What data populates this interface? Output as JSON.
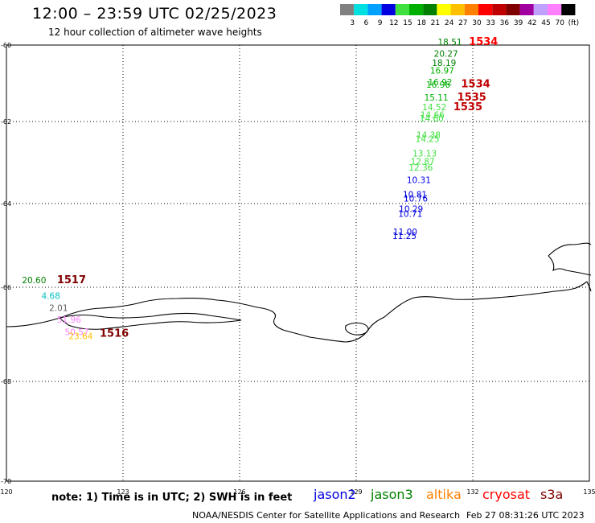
{
  "header": {
    "title": "12:00 – 23:59 UTC 02/25/2023",
    "subtitle": "12 hour collection of altimeter wave heights"
  },
  "colorbar": {
    "unit_label": "(ft)",
    "bins": [
      {
        "label": "3",
        "color": "#808080"
      },
      {
        "label": "6",
        "color": "#00e0e0"
      },
      {
        "label": "9",
        "color": "#00a0ff"
      },
      {
        "label": "12",
        "color": "#0000e0"
      },
      {
        "label": "15",
        "color": "#40e040"
      },
      {
        "label": "18",
        "color": "#00b000"
      },
      {
        "label": "21",
        "color": "#008000"
      },
      {
        "label": "24",
        "color": "#ffff00"
      },
      {
        "label": "27",
        "color": "#ffc000"
      },
      {
        "label": "30",
        "color": "#ff8000"
      },
      {
        "label": "33",
        "color": "#ff0000"
      },
      {
        "label": "36",
        "color": "#c00000"
      },
      {
        "label": "39",
        "color": "#800000"
      },
      {
        "label": "42",
        "color": "#a000a0"
      },
      {
        "label": "45",
        "color": "#c0a0ff"
      },
      {
        "label": "70",
        "color": "#ff80ff"
      },
      {
        "label": "",
        "color": "#000000"
      }
    ]
  },
  "map": {
    "lat_labels": [
      "-60",
      "-62",
      "-64",
      "-66",
      "-68",
      "-70"
    ],
    "lon_labels": [
      "120",
      "123",
      "126",
      "129",
      "132",
      "135"
    ],
    "lat_range": [
      -70,
      -60
    ],
    "lon_range": [
      120,
      135
    ]
  },
  "observations": [
    {
      "text": "18.51",
      "color": "#008000",
      "lon": 131.1,
      "lat": -60.0
    },
    {
      "text": "20.27",
      "color": "#008000",
      "lon": 131.0,
      "lat": -60.3
    },
    {
      "text": "18.19",
      "color": "#008000",
      "lon": 130.95,
      "lat": -60.55
    },
    {
      "text": "16.97",
      "color": "#00b000",
      "lon": 130.9,
      "lat": -60.75
    },
    {
      "text": "16.92",
      "color": "#00b000",
      "lon": 130.85,
      "lat": -61.05
    },
    {
      "text": "16.96",
      "color": "#00b000",
      "lon": 130.8,
      "lat": -61.12
    },
    {
      "text": "15.11",
      "color": "#00b000",
      "lon": 130.75,
      "lat": -61.45
    },
    {
      "text": "14.52",
      "color": "#40e040",
      "lon": 130.7,
      "lat": -61.7
    },
    {
      "text": "14.66",
      "color": "#40e040",
      "lon": 130.65,
      "lat": -61.9
    },
    {
      "text": "14.60",
      "color": "#40e040",
      "lon": 130.63,
      "lat": -62.0
    },
    {
      "text": "14.38",
      "color": "#40e040",
      "lon": 130.55,
      "lat": -62.4
    },
    {
      "text": "14.25",
      "color": "#40e040",
      "lon": 130.52,
      "lat": -62.5
    },
    {
      "text": "13.13",
      "color": "#40e040",
      "lon": 130.45,
      "lat": -62.85
    },
    {
      "text": "12.87",
      "color": "#40e040",
      "lon": 130.4,
      "lat": -63.05
    },
    {
      "text": "12.36",
      "color": "#40e040",
      "lon": 130.35,
      "lat": -63.2
    },
    {
      "text": "10.31",
      "color": "#0000e0",
      "lon": 130.3,
      "lat": -63.5
    },
    {
      "text": "10.81",
      "color": "#0000e0",
      "lon": 130.2,
      "lat": -63.85
    },
    {
      "text": "10.76",
      "color": "#0000e0",
      "lon": 130.22,
      "lat": -63.95
    },
    {
      "text": "10.29",
      "color": "#0000e0",
      "lon": 130.1,
      "lat": -64.2
    },
    {
      "text": "10.71",
      "color": "#0000e0",
      "lon": 130.08,
      "lat": -64.32
    },
    {
      "text": "11.00",
      "color": "#0000e0",
      "lon": 129.95,
      "lat": -64.75
    },
    {
      "text": "11.25",
      "color": "#0000e0",
      "lon": 129.93,
      "lat": -64.85
    },
    {
      "text": "1534",
      "color": "#ff0000",
      "lon": 131.9,
      "lat": -60.0,
      "bold": true,
      "size": 13
    },
    {
      "text": "1534",
      "color": "#c00000",
      "lon": 131.7,
      "lat": -61.1,
      "bold": true,
      "size": 13
    },
    {
      "text": "1535",
      "color": "#c00000",
      "lon": 131.6,
      "lat": -61.45,
      "bold": true,
      "size": 13
    },
    {
      "text": "1535",
      "color": "#c00000",
      "lon": 131.5,
      "lat": -61.7,
      "bold": true,
      "size": 13
    },
    {
      "text": "20.60",
      "color": "#008000",
      "lon": 120.4,
      "lat": -65.9
    },
    {
      "text": "1517",
      "color": "#800000",
      "lon": 121.3,
      "lat": -65.9,
      "bold": true,
      "size": 13
    },
    {
      "text": "4.68",
      "color": "#00c0c0",
      "lon": 120.9,
      "lat": -66.25
    },
    {
      "text": "2.01",
      "color": "#606060",
      "lon": 121.1,
      "lat": -66.5
    },
    {
      "text": "51.96",
      "color": "#ff80ff",
      "lon": 121.3,
      "lat": -66.75
    },
    {
      "text": "50.57",
      "color": "#ff80ff",
      "lon": 121.5,
      "lat": -67.02
    },
    {
      "text": "23.64",
      "color": "#ffc000",
      "lon": 121.6,
      "lat": -67.1
    },
    {
      "text": "1516",
      "color": "#800000",
      "lon": 122.4,
      "lat": -67.05,
      "bold": true,
      "size": 13
    }
  ],
  "footer": {
    "note": "note:  1) Time is in UTC;  2) SWH is in feet",
    "satellites": [
      {
        "name": "jason2",
        "color": "#0000e0"
      },
      {
        "name": "jason3",
        "color": "#008000"
      },
      {
        "name": "altika",
        "color": "#ff8000"
      },
      {
        "name": "cryosat",
        "color": "#ff0000"
      },
      {
        "name": "s3a",
        "color": "#800000"
      }
    ],
    "credit": "NOAA/NESDIS Center for Satellite Applications and Research",
    "timestamp": "Feb 27 08:31:26 UTC 2023"
  }
}
